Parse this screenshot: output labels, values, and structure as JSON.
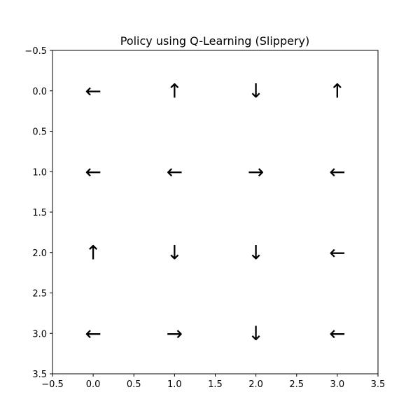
{
  "chart_data": {
    "type": "table",
    "title": "Policy using Q-Learning (Slippery)",
    "xlabel": "",
    "ylabel": "",
    "xlim": [
      -0.5,
      3.5
    ],
    "ylim": [
      3.5,
      -0.5
    ],
    "y_inverted": true,
    "x_ticks": [
      "−0.5",
      "0.0",
      "0.5",
      "1.0",
      "1.5",
      "2.0",
      "2.5",
      "3.0",
      "3.5"
    ],
    "y_ticks": [
      "−0.5",
      "0.0",
      "0.5",
      "1.0",
      "1.5",
      "2.0",
      "2.5",
      "3.0",
      "3.5"
    ],
    "tick_values": [
      -0.5,
      0,
      0.5,
      1,
      1.5,
      2,
      2.5,
      3,
      3.5
    ],
    "grid": false,
    "cells": [
      {
        "x": 0,
        "y": 0,
        "action": "←"
      },
      {
        "x": 1,
        "y": 0,
        "action": "↑"
      },
      {
        "x": 2,
        "y": 0,
        "action": "↓"
      },
      {
        "x": 3,
        "y": 0,
        "action": "↑"
      },
      {
        "x": 0,
        "y": 1,
        "action": "←"
      },
      {
        "x": 1,
        "y": 1,
        "action": "←"
      },
      {
        "x": 2,
        "y": 1,
        "action": "→"
      },
      {
        "x": 3,
        "y": 1,
        "action": "←"
      },
      {
        "x": 0,
        "y": 2,
        "action": "↑"
      },
      {
        "x": 1,
        "y": 2,
        "action": "↓"
      },
      {
        "x": 2,
        "y": 2,
        "action": "↓"
      },
      {
        "x": 3,
        "y": 2,
        "action": "←"
      },
      {
        "x": 0,
        "y": 3,
        "action": "←"
      },
      {
        "x": 1,
        "y": 3,
        "action": "→"
      },
      {
        "x": 2,
        "y": 3,
        "action": "↓"
      },
      {
        "x": 3,
        "y": 3,
        "action": "←"
      }
    ]
  }
}
